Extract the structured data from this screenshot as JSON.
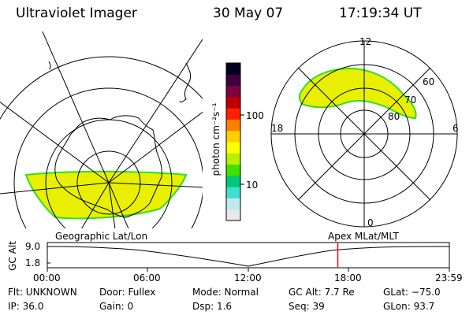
{
  "header": {
    "instrument": "Ultraviolet Imager",
    "date": "30 May 07",
    "time": "17:19:34 UT"
  },
  "colorbar": {
    "axis_label": "photon cm⁻²s⁻¹",
    "tick_labels": [
      "100",
      "10"
    ],
    "scale": "log",
    "colors": [
      "#e8e8e8",
      "#c0e8f0",
      "#40e0d0",
      "#00c878",
      "#40e000",
      "#b8f000",
      "#ffff00",
      "#ffd000",
      "#ff8000",
      "#ff2000",
      "#c00000",
      "#800040",
      "#400040",
      "#000020"
    ]
  },
  "left_panel": {
    "caption": "Geographic Lat/Lon",
    "aurora_color": "#e8f000"
  },
  "right_panel": {
    "caption": "Apex MLat/MLT",
    "mlt_labels": [
      "12",
      "18",
      "6",
      "0"
    ],
    "mlat_labels": [
      "60",
      "70",
      "80"
    ],
    "aurora_color": "#e8f000"
  },
  "timeline": {
    "ylabel": "GC Alt",
    "y_ticks": [
      "9.0",
      "1.8"
    ],
    "x_ticks": [
      "00:00",
      "06:00",
      "12:00",
      "18:00",
      "23:59"
    ],
    "current_time_marker_color": "#ff0000",
    "current_time_hours": 17.33
  },
  "footer": {
    "flt": "Flt: UNKNOWN",
    "ip": "IP: 36.0",
    "door": "Door: Fullex",
    "gain": "Gain:  0",
    "mode": "Mode: Normal",
    "dsp": "Dsp:    1.6",
    "gcalt": "GC Alt: 7.7 Re",
    "seq": "Seq: 39",
    "glat": "GLat: −75.0",
    "glon": "GLon:  93.7"
  }
}
